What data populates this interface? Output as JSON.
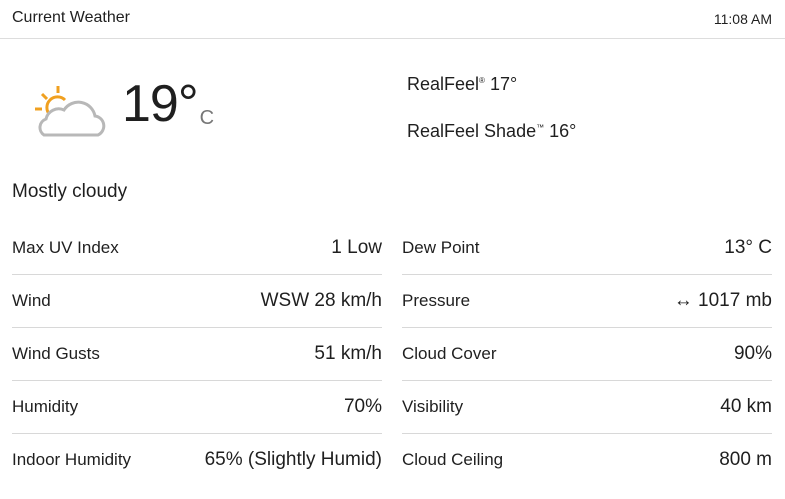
{
  "header": {
    "title": "Current Weather",
    "time": "11:08 AM"
  },
  "current": {
    "icon": "partly-sunny-cloud-icon",
    "temperature": "19°",
    "unit": "C",
    "phrase": "Mostly cloudy",
    "realfeel_label": "RealFeel",
    "realfeel_mark": "®",
    "realfeel_value": "17°",
    "realfeel_shade_label": "RealFeel Shade",
    "realfeel_shade_mark": "™",
    "realfeel_shade_value": "16°"
  },
  "colors": {
    "sun": "#f0a020",
    "cloud": "#b8b8b8"
  },
  "left": [
    {
      "label": "Max UV Index",
      "value": "1 Low"
    },
    {
      "label": "Wind",
      "value": "WSW 28 km/h"
    },
    {
      "label": "Wind Gusts",
      "value": "51 km/h"
    },
    {
      "label": "Humidity",
      "value": "70%"
    },
    {
      "label": "Indoor Humidity",
      "value": "65% (Slightly Humid)"
    }
  ],
  "right": [
    {
      "label": "Dew Point",
      "value": "13° C"
    },
    {
      "label": "Pressure",
      "value": "↔ 1017 mb"
    },
    {
      "label": "Cloud Cover",
      "value": "90%"
    },
    {
      "label": "Visibility",
      "value": "40 km"
    },
    {
      "label": "Cloud Ceiling",
      "value": "800 m"
    }
  ]
}
